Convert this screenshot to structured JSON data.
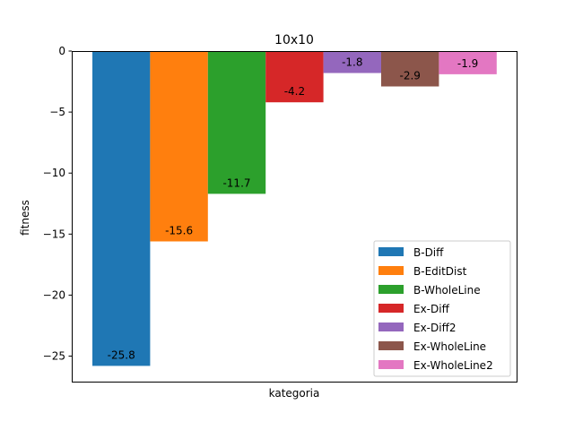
{
  "chart_data": {
    "type": "bar",
    "title": "10x10",
    "xlabel": "kategoria",
    "ylabel": "fitness",
    "ylim": [
      -27.09,
      0
    ],
    "yticks": [
      0,
      -5,
      -10,
      -15,
      -20,
      -25
    ],
    "ytick_labels": [
      "0",
      "−5",
      "−10",
      "−15",
      "−20",
      "−25"
    ],
    "legend_position": "lower-right",
    "grid": false,
    "series": [
      {
        "name": "B-Diff",
        "value": -25.8,
        "label": "-25.8",
        "color": "#1f77b4"
      },
      {
        "name": "B-EditDist",
        "value": -15.6,
        "label": "-15.6",
        "color": "#ff7f0e"
      },
      {
        "name": "B-WholeLine",
        "value": -11.7,
        "label": "-11.7",
        "color": "#2ca02c"
      },
      {
        "name": "Ex-Diff",
        "value": -4.2,
        "label": "-4.2",
        "color": "#d62728"
      },
      {
        "name": "Ex-Diff2",
        "value": -1.8,
        "label": "-1.8",
        "color": "#9467bd"
      },
      {
        "name": "Ex-WholeLine",
        "value": -2.9,
        "label": "-2.9",
        "color": "#8c564b"
      },
      {
        "name": "Ex-WholeLine2",
        "value": -1.9,
        "label": "-1.9",
        "color": "#e377c2"
      }
    ]
  }
}
